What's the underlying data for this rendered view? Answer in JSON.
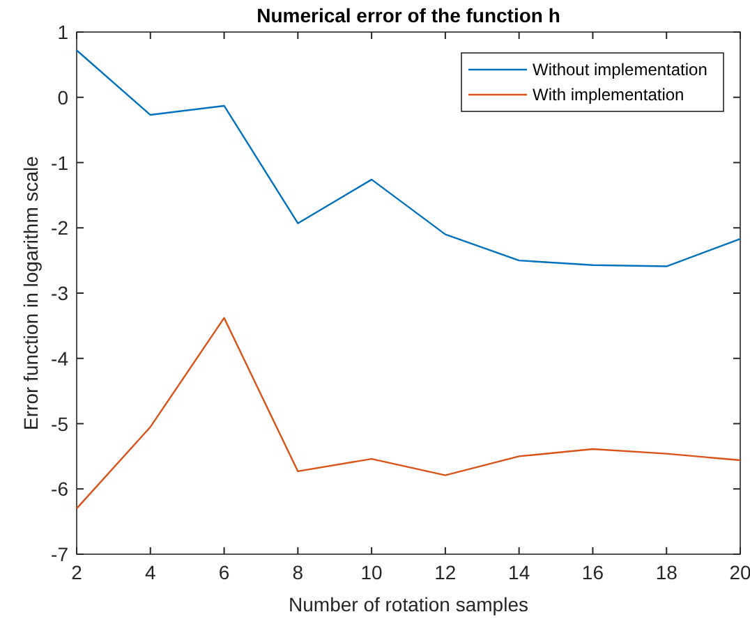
{
  "chart_data": {
    "type": "line",
    "title": "Numerical error of the function h",
    "xlabel": "Number of rotation samples",
    "ylabel": "Error function in logarithm scale",
    "x": [
      2,
      4,
      6,
      8,
      10,
      12,
      14,
      16,
      18,
      20
    ],
    "series": [
      {
        "name": "Without implementation",
        "color": "#0072bd",
        "values": [
          0.72,
          -0.27,
          -0.13,
          -1.93,
          -1.26,
          -2.1,
          -2.5,
          -2.57,
          -2.59,
          -2.17
        ]
      },
      {
        "name": "With implementation",
        "color": "#d95319",
        "values": [
          -6.3,
          -5.05,
          -3.38,
          -5.73,
          -5.54,
          -5.79,
          -5.5,
          -5.39,
          -5.46,
          -5.56
        ]
      }
    ],
    "xlim": [
      2,
      20
    ],
    "xticks": [
      2,
      4,
      6,
      8,
      10,
      12,
      14,
      16,
      18,
      20
    ],
    "ylim": [
      -7,
      1
    ],
    "yticks": [
      -7,
      -6,
      -5,
      -4,
      -3,
      -2,
      -1,
      0,
      1
    ],
    "grid": false,
    "legend": "top right",
    "marker": "none",
    "line_style": "solid"
  }
}
